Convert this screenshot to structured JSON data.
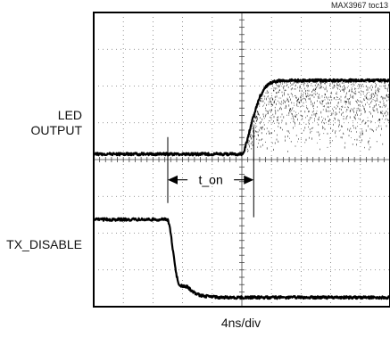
{
  "figure_id": "MAX3967 toc13",
  "chart_data": {
    "type": "line",
    "title": "",
    "xlabel": "4ns/div",
    "ylabel": "",
    "x_divisions": 10,
    "y_divisions": 8,
    "grid": true,
    "series": [
      {
        "name": "LED OUTPUT",
        "x_div": [
          0,
          5.05,
          5.2,
          5.4,
          5.6,
          5.8,
          6.0,
          6.3,
          6.6,
          7.0,
          10
        ],
        "y_div": [
          4.15,
          4.15,
          4.6,
          5.2,
          5.7,
          5.98,
          6.1,
          6.15,
          6.15,
          6.15,
          6.15
        ],
        "noise_band_after_rise": true
      },
      {
        "name": "TX_DISABLE",
        "x_div": [
          0,
          2.5,
          2.58,
          2.68,
          2.78,
          2.88,
          3.0,
          3.15,
          3.35,
          3.6,
          3.9,
          4.3,
          10
        ],
        "y_div": [
          2.37,
          2.37,
          2.1,
          1.5,
          0.9,
          0.6,
          0.55,
          0.55,
          0.4,
          0.3,
          0.28,
          0.25,
          0.25
        ]
      }
    ],
    "annotation": {
      "label": "t_on",
      "x_start_div": 2.5,
      "x_end_div": 5.4,
      "y_div": 3.45
    }
  },
  "labels": {
    "led": [
      "LED",
      "OUTPUT"
    ],
    "tx": "TX_DISABLE",
    "x_axis": "4ns/div"
  }
}
